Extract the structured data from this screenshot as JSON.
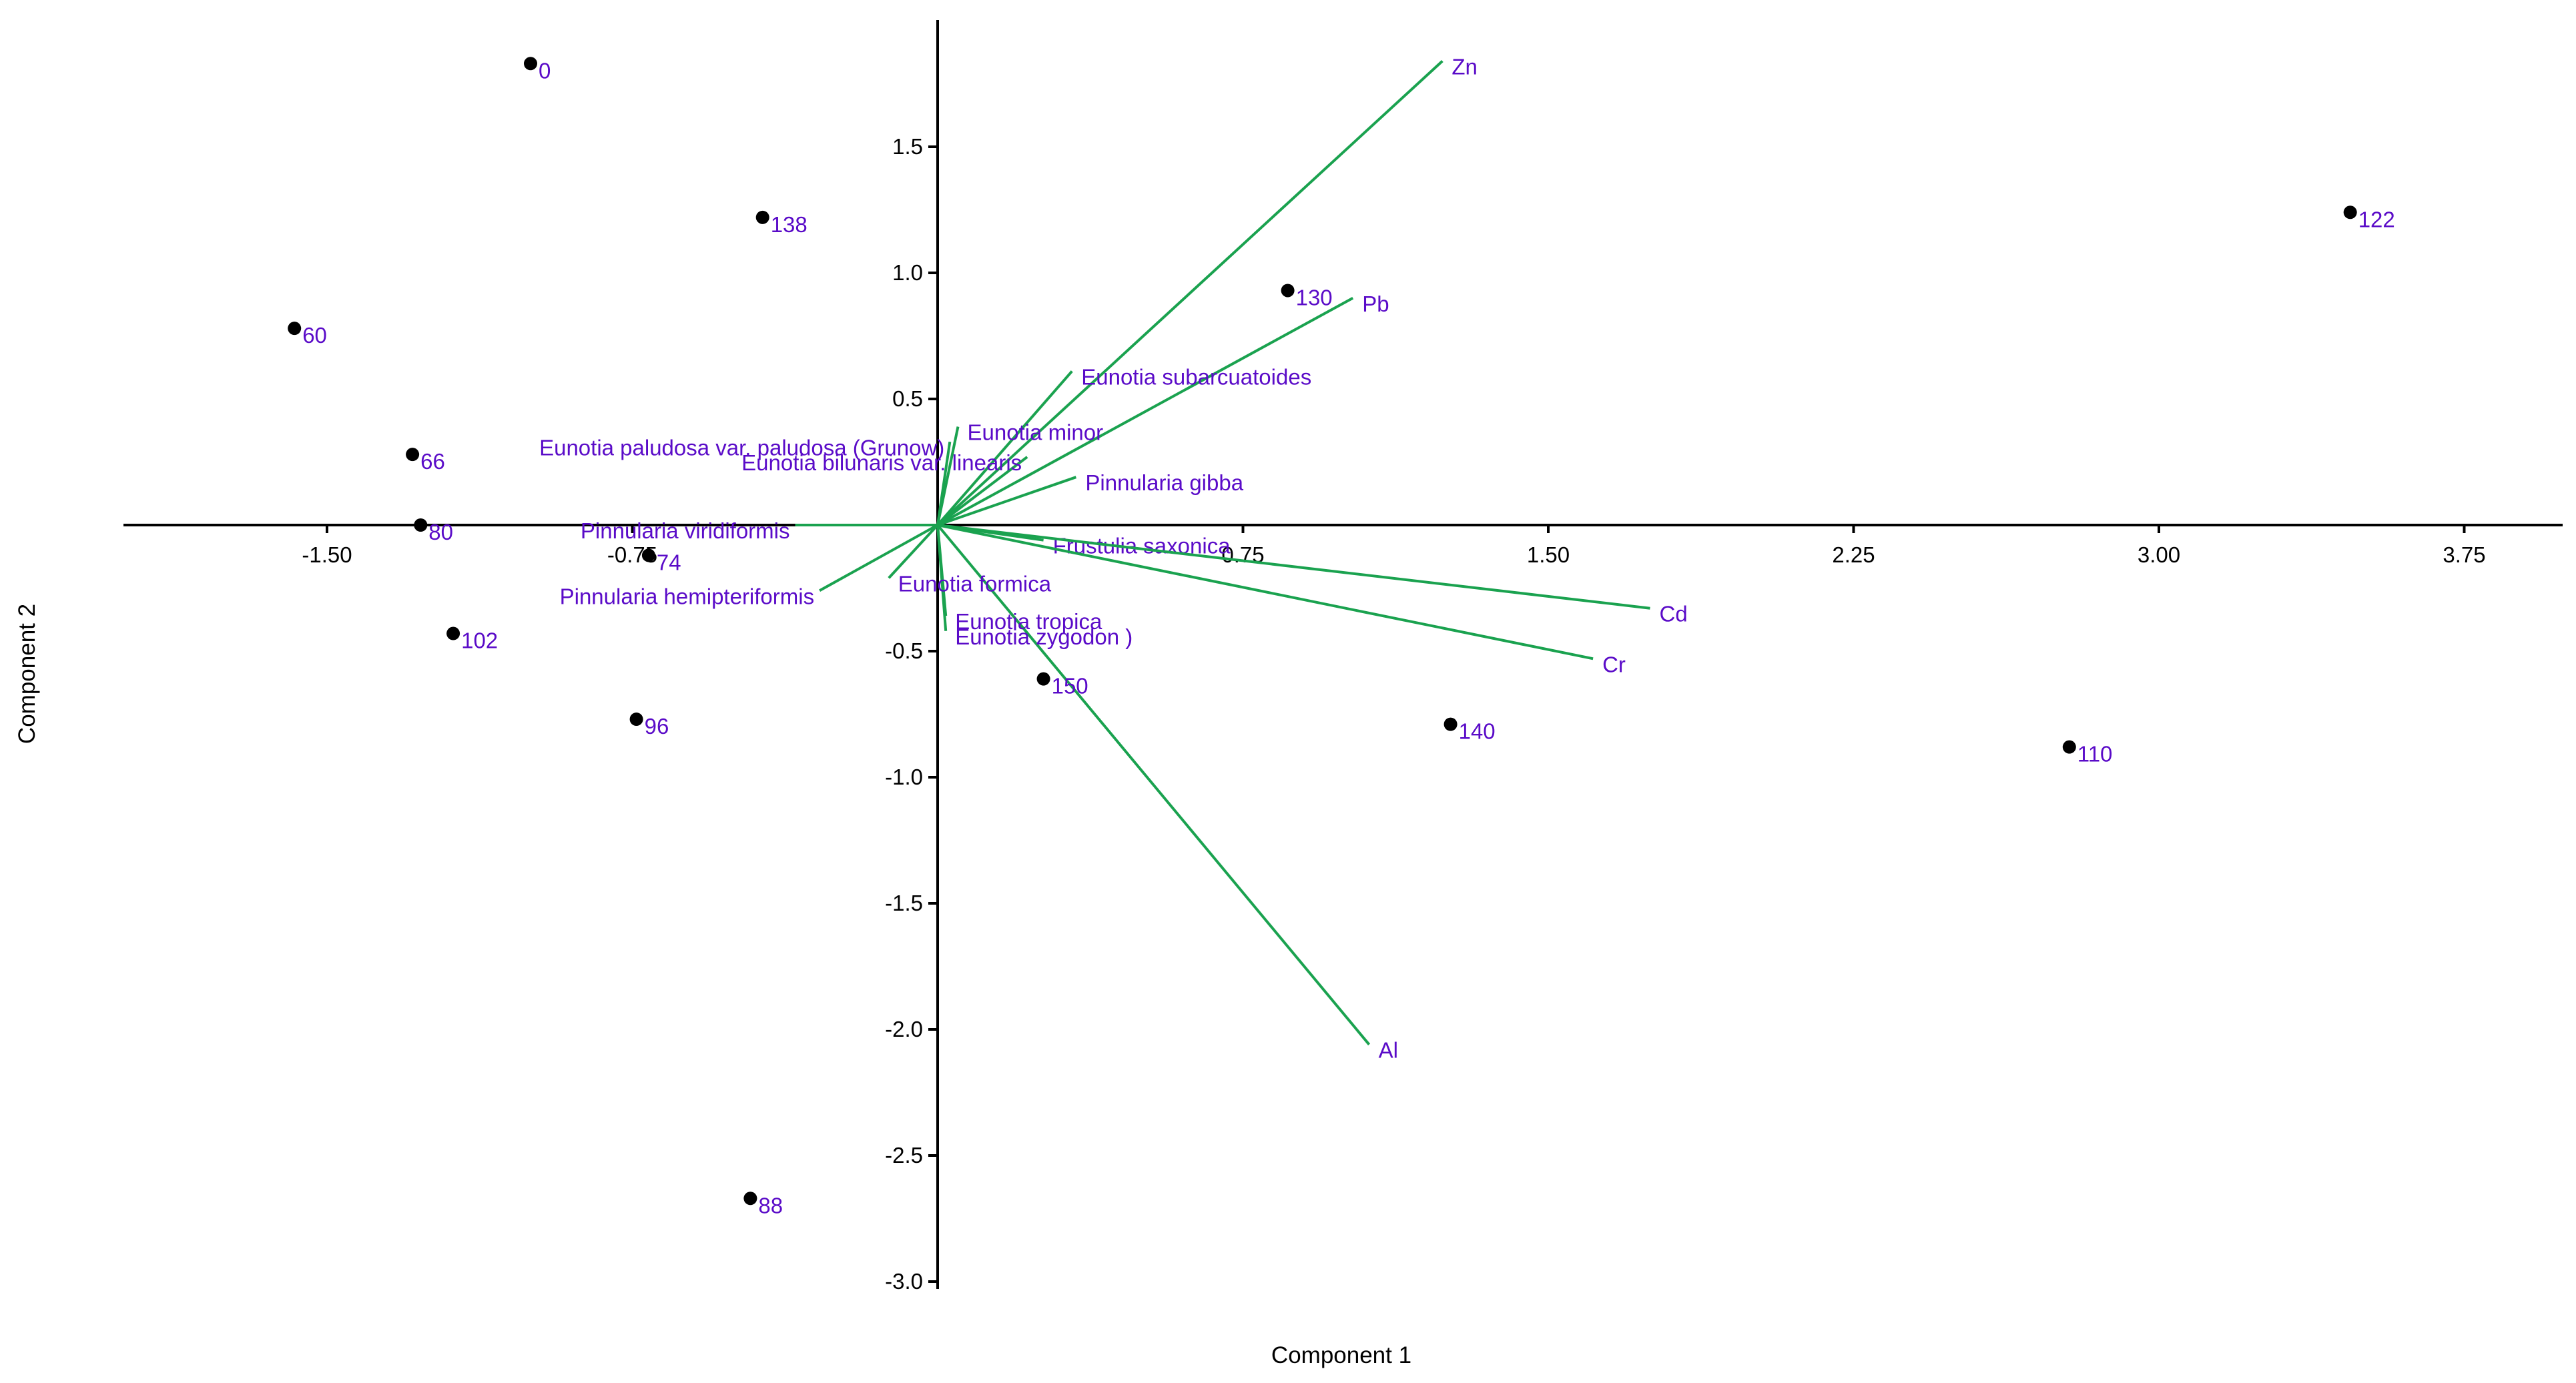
{
  "chart_data": {
    "type": "scatter",
    "title": "",
    "xlabel": "Component 1",
    "ylabel": "Component 2",
    "xlim": [
      -2.0,
      4.0
    ],
    "ylim": [
      -3.0,
      2.0
    ],
    "x_ticks": [
      -1.5,
      -0.75,
      0.75,
      1.5,
      2.25,
      3.0,
      3.75
    ],
    "x_tick_labels": [
      "-1.50",
      "-0.75",
      "0.75",
      "1.50",
      "2.25",
      "3.00",
      "3.75"
    ],
    "y_ticks": [
      1.5,
      1.0,
      0.5,
      -0.5,
      -1.0,
      -1.5,
      -2.0,
      -2.5,
      -3.0
    ],
    "y_tick_labels": [
      "1.5",
      "1.0",
      "0.5",
      "-0.5",
      "-1.0",
      "-1.5",
      "-2.0",
      "-2.5",
      "-3.0"
    ],
    "colors": {
      "points": "#000000",
      "point_labels": "#5a0bc8",
      "loadings": "#1aa24f",
      "loading_labels": "#5a0bc8"
    },
    "scores": [
      {
        "label": "0",
        "x": -1.0,
        "y": 1.83
      },
      {
        "label": "138",
        "x": -0.43,
        "y": 1.22
      },
      {
        "label": "122",
        "x": 3.47,
        "y": 1.24
      },
      {
        "label": "130",
        "x": 0.86,
        "y": 0.93
      },
      {
        "label": "60",
        "x": -1.58,
        "y": 0.78
      },
      {
        "label": "66",
        "x": -1.29,
        "y": 0.28
      },
      {
        "label": "80",
        "x": -1.27,
        "y": 0.0
      },
      {
        "label": "74",
        "x": -0.71,
        "y": -0.12
      },
      {
        "label": "102",
        "x": -1.19,
        "y": -0.43
      },
      {
        "label": "96",
        "x": -0.74,
        "y": -0.77
      },
      {
        "label": "150",
        "x": 0.26,
        "y": -0.61
      },
      {
        "label": "140",
        "x": 1.26,
        "y": -0.79
      },
      {
        "label": "110",
        "x": 2.78,
        "y": -0.88
      },
      {
        "label": "88",
        "x": -0.46,
        "y": -2.67
      }
    ],
    "loadings": [
      {
        "label": "Zn",
        "x": 1.24,
        "y": 1.84,
        "label_side": "right"
      },
      {
        "label": "Pb",
        "x": 1.02,
        "y": 0.9,
        "label_side": "right"
      },
      {
        "label": "Eunotia subarcuatoides",
        "x": 0.33,
        "y": 0.61,
        "label_side": "right"
      },
      {
        "label": "Eunotia minor",
        "x": 0.05,
        "y": 0.39,
        "label_side": "right"
      },
      {
        "label": "Eunotia paludosa var. paludosa (Grunow)",
        "x": 0.03,
        "y": 0.33,
        "label_side": "left"
      },
      {
        "label": "Eunotia bilunaris var. linearis",
        "x": 0.22,
        "y": 0.27,
        "label_side": "left"
      },
      {
        "label": "Pinnularia gibba",
        "x": 0.34,
        "y": 0.19,
        "label_side": "right"
      },
      {
        "label": "Frustulia saxonica",
        "x": 0.26,
        "y": -0.06,
        "label_side": "right"
      },
      {
        "label": "Cd",
        "x": 1.75,
        "y": -0.33,
        "label_side": "right"
      },
      {
        "label": "Cr",
        "x": 1.61,
        "y": -0.53,
        "label_side": "right"
      },
      {
        "label": "Al",
        "x": 1.06,
        "y": -2.06,
        "label_side": "right"
      },
      {
        "label": "Eunotia tropica",
        "x": 0.02,
        "y": -0.36,
        "label_side": "right"
      },
      {
        "label": "Eunotia zygodon )",
        "x": 0.02,
        "y": -0.42,
        "label_side": "right"
      },
      {
        "label": "Eunotia formica",
        "x": -0.12,
        "y": -0.21,
        "label_side": "right"
      },
      {
        "label": "Pinnularia hemipteriformis",
        "x": -0.29,
        "y": -0.26,
        "label_side": "left"
      },
      {
        "label": "Pinnularia viridiformis",
        "x": -0.35,
        "y": 0.0,
        "label_side": "left"
      }
    ]
  }
}
